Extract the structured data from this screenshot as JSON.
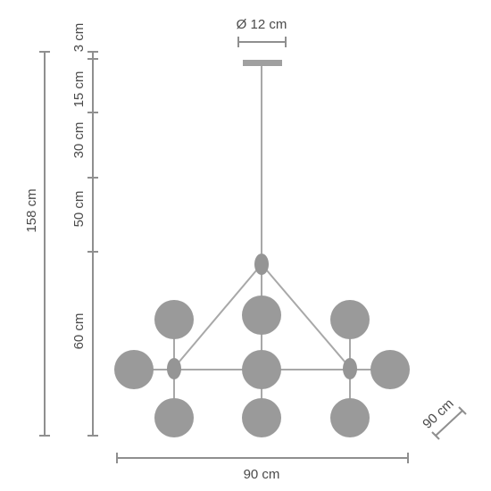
{
  "dimensions": {
    "canopy_diameter": "Ø 12 cm",
    "total_height": "158 cm",
    "segment_canopy": "3 cm",
    "segment_1": "15 cm",
    "segment_2": "30 cm",
    "segment_3": "50 cm",
    "segment_body": "60 cm",
    "width": "90 cm",
    "depth": "90 cm"
  },
  "colors": {
    "dimension_line": "#8f8f8f",
    "lamp_frame": "#a8a8a8",
    "globe": "#9a9a9a",
    "text": "#4a4a4a"
  }
}
